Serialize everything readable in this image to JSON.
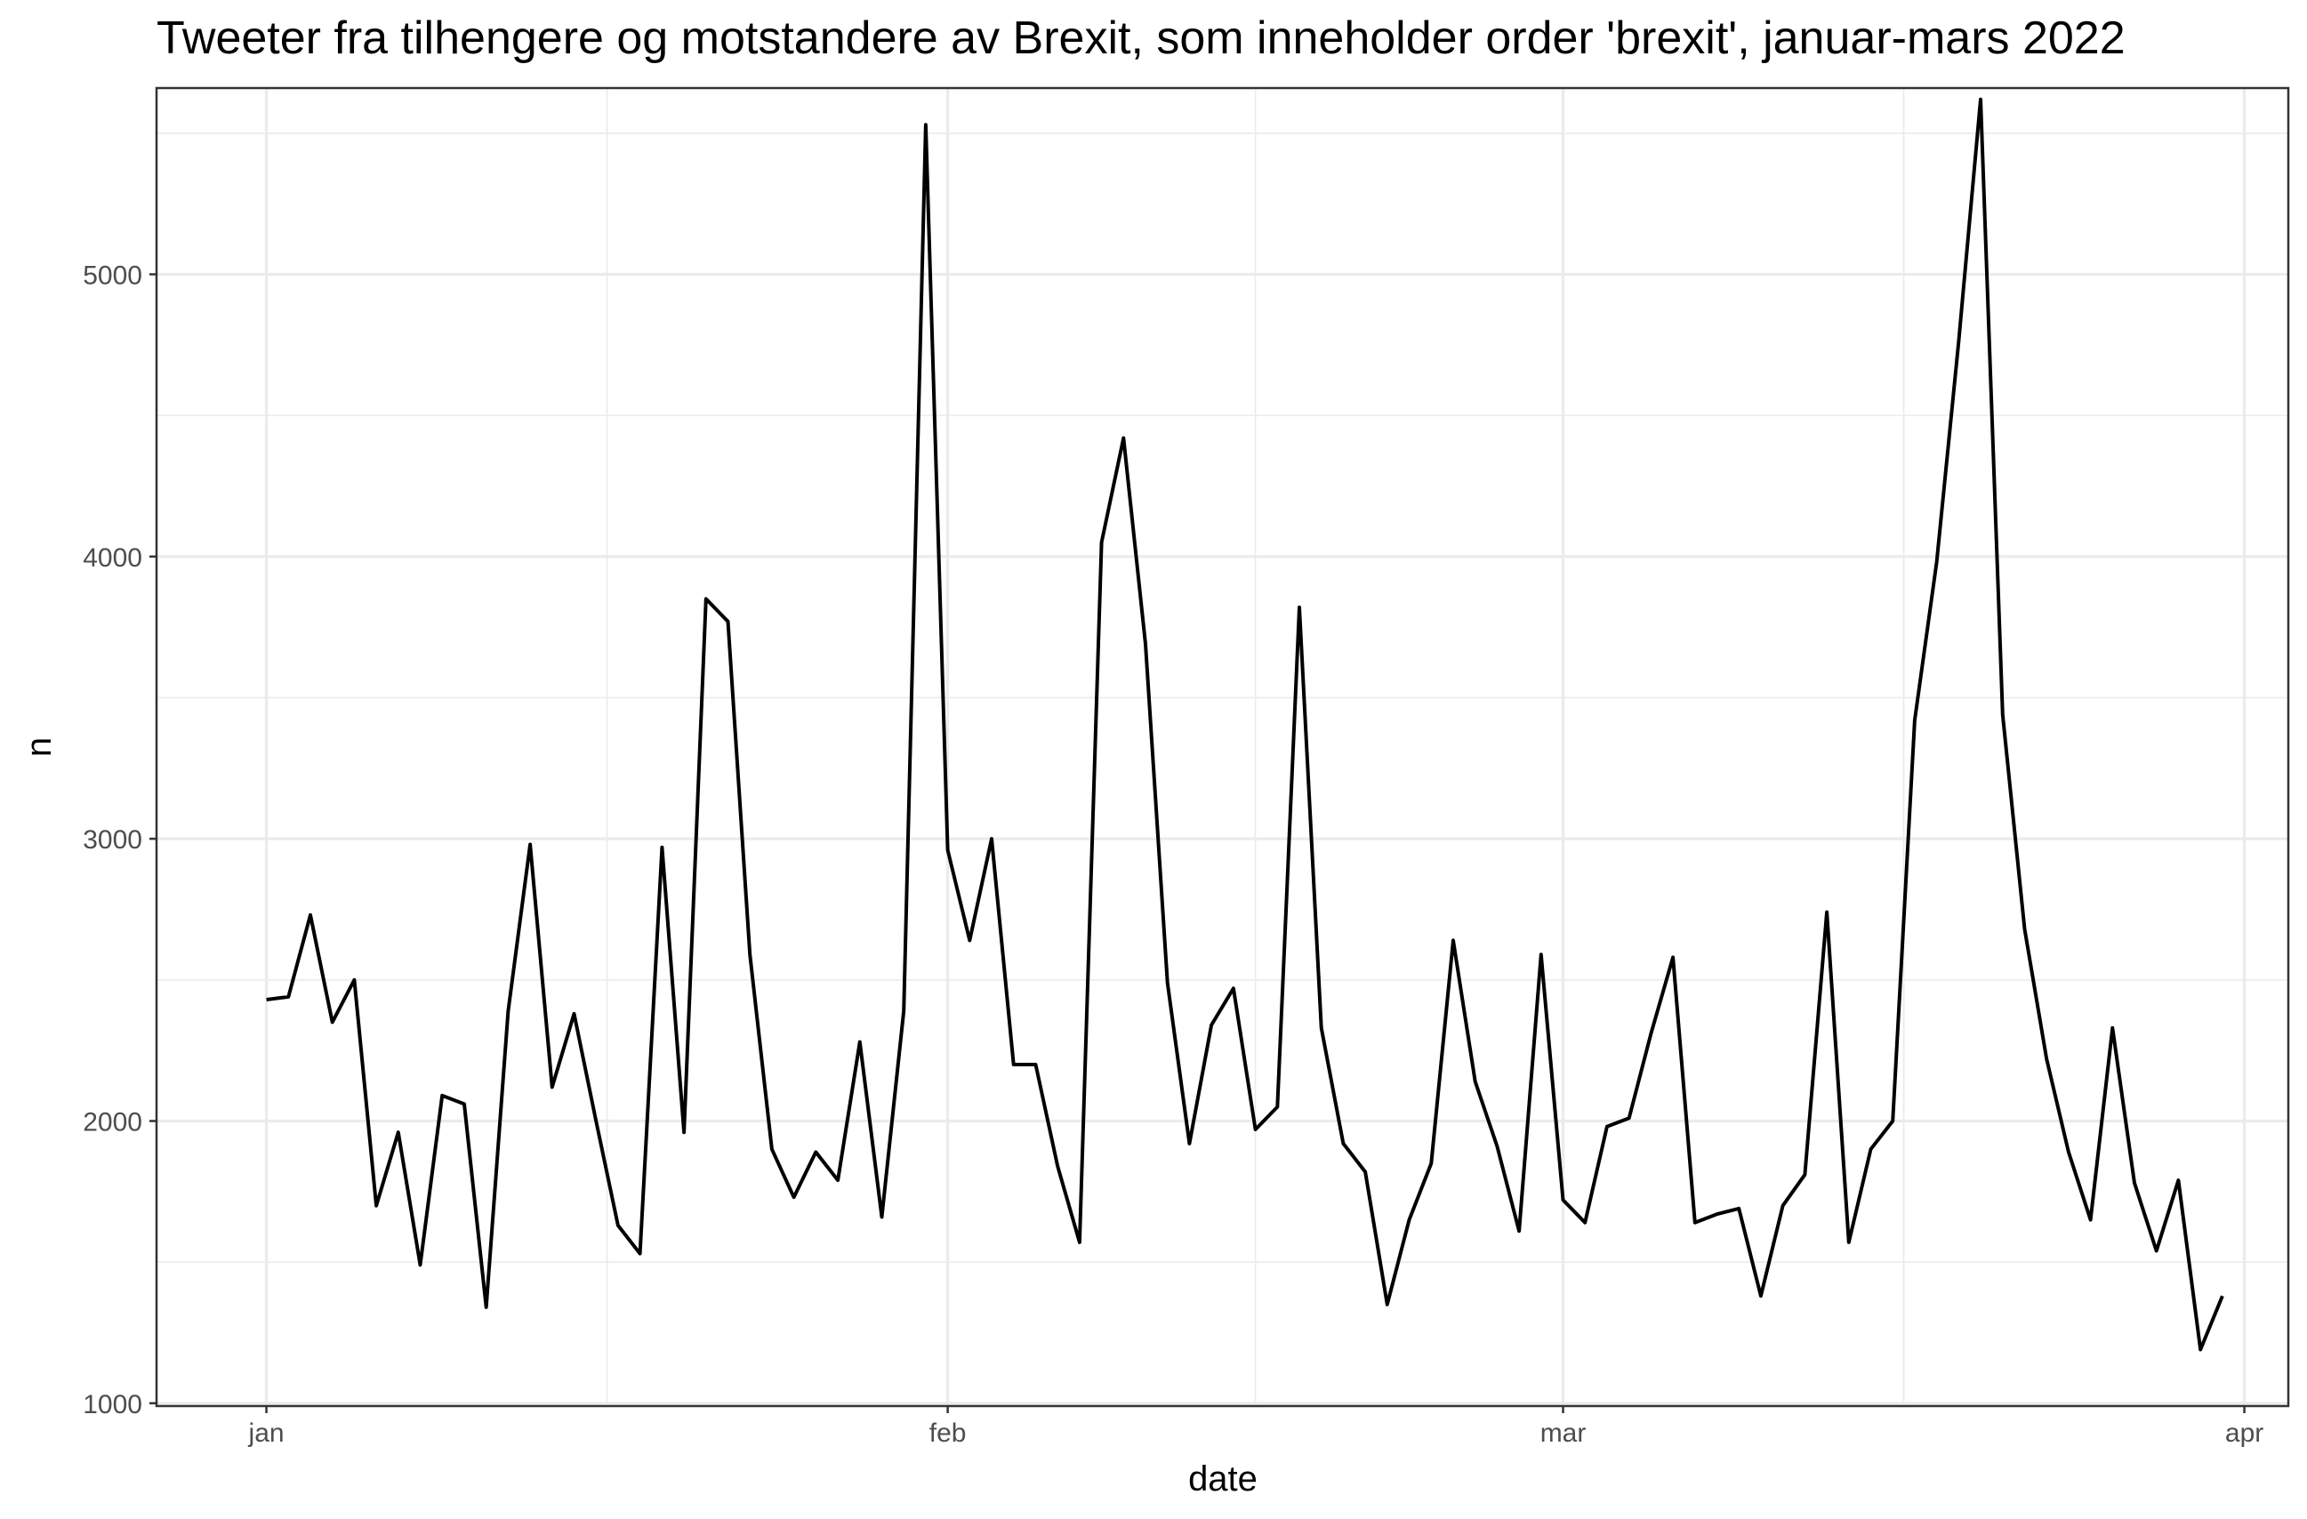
{
  "chart_data": {
    "type": "line",
    "title": "Tweeter fra tilhengere og motstandere av Brexit, som inneholder order 'brexit', januar-mars 2022",
    "xlabel": "date",
    "ylabel": "n",
    "x_ticks": [
      {
        "label": "jan",
        "date": "2022-01-01"
      },
      {
        "label": "feb",
        "date": "2022-02-01"
      },
      {
        "label": "mar",
        "date": "2022-03-01"
      },
      {
        "label": "apr",
        "date": "2022-04-01"
      }
    ],
    "y_ticks": [
      1000,
      2000,
      3000,
      4000,
      5000
    ],
    "xlim": [
      "2021-12-27",
      "2022-04-03"
    ],
    "ylim": [
      990,
      5660
    ],
    "grid": true,
    "series": [
      {
        "x": [
          "2022-01-01",
          "2022-01-02",
          "2022-01-03",
          "2022-01-04",
          "2022-01-05",
          "2022-01-06",
          "2022-01-07",
          "2022-01-08",
          "2022-01-09",
          "2022-01-10",
          "2022-01-11",
          "2022-01-12",
          "2022-01-13",
          "2022-01-14",
          "2022-01-15",
          "2022-01-16",
          "2022-01-17",
          "2022-01-18",
          "2022-01-19",
          "2022-01-20",
          "2022-01-21",
          "2022-01-22",
          "2022-01-23",
          "2022-01-24",
          "2022-01-25",
          "2022-01-26",
          "2022-01-27",
          "2022-01-28",
          "2022-01-29",
          "2022-01-30",
          "2022-01-31",
          "2022-02-01",
          "2022-02-02",
          "2022-02-03",
          "2022-02-04",
          "2022-02-05",
          "2022-02-06",
          "2022-02-07",
          "2022-02-08",
          "2022-02-09",
          "2022-02-10",
          "2022-02-11",
          "2022-02-12",
          "2022-02-13",
          "2022-02-14",
          "2022-02-15",
          "2022-02-16",
          "2022-02-17",
          "2022-02-18",
          "2022-02-19",
          "2022-02-20",
          "2022-02-21",
          "2022-02-22",
          "2022-02-23",
          "2022-02-24",
          "2022-02-25",
          "2022-02-26",
          "2022-02-27",
          "2022-02-28",
          "2022-03-01",
          "2022-03-02",
          "2022-03-03",
          "2022-03-04",
          "2022-03-05",
          "2022-03-06",
          "2022-03-07",
          "2022-03-08",
          "2022-03-09",
          "2022-03-10",
          "2022-03-11",
          "2022-03-12",
          "2022-03-13",
          "2022-03-14",
          "2022-03-15",
          "2022-03-16",
          "2022-03-17",
          "2022-03-18",
          "2022-03-19",
          "2022-03-20",
          "2022-03-21",
          "2022-03-22",
          "2022-03-23",
          "2022-03-24",
          "2022-03-25",
          "2022-03-26",
          "2022-03-27",
          "2022-03-28",
          "2022-03-29",
          "2022-03-30",
          "2022-03-31"
        ],
        "values": [
          2430,
          2440,
          2730,
          2350,
          2500,
          1700,
          1960,
          1490,
          2090,
          2060,
          1340,
          2390,
          2980,
          2120,
          2380,
          2000,
          1630,
          1530,
          2970,
          1960,
          3850,
          3770,
          2590,
          1900,
          1730,
          1890,
          1790,
          2280,
          1660,
          2390,
          5530,
          2960,
          2640,
          3000,
          2200,
          2200,
          1840,
          1570,
          4050,
          4420,
          3690,
          2490,
          1920,
          2340,
          2470,
          1970,
          2050,
          3820,
          2330,
          1920,
          1820,
          1350,
          1650,
          1850,
          2640,
          2140,
          1910,
          1610,
          2590,
          1720,
          1640,
          1980,
          2010,
          2310,
          2580,
          1640,
          1670,
          1690,
          1380,
          1700,
          1810,
          2740,
          1570,
          1900,
          2000,
          3420,
          3980,
          4760,
          5620,
          3440,
          2680,
          2220,
          1890,
          1650,
          2330,
          1780,
          1540,
          1790,
          1190,
          1380
        ]
      }
    ]
  }
}
